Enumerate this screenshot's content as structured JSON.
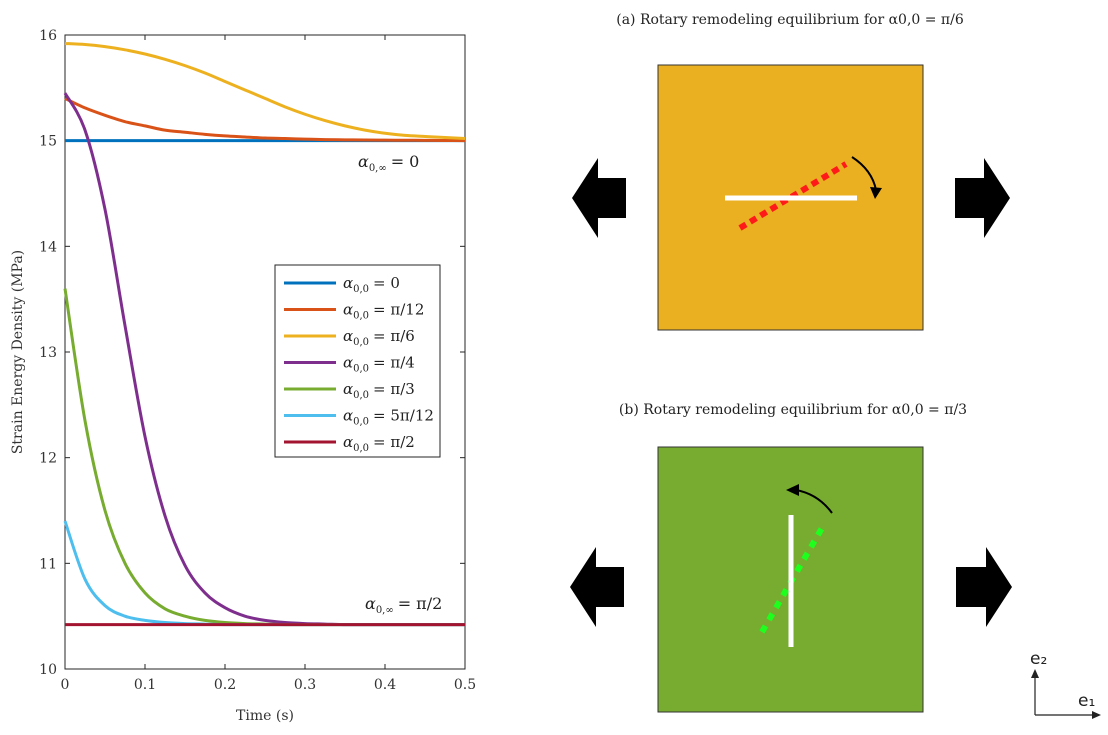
{
  "chart_data": {
    "type": "line",
    "xlabel": "Time (s)",
    "ylabel": "Strain Energy Density (MPa)",
    "xlim": [
      0,
      0.5
    ],
    "ylim": [
      10,
      16
    ],
    "x_ticks": [
      "0",
      "0.1",
      "0.2",
      "0.3",
      "0.4",
      "0.5"
    ],
    "y_ticks": [
      "10",
      "11",
      "12",
      "13",
      "14",
      "15",
      "16"
    ],
    "grid": false,
    "legend_position": "right-middle",
    "x": [
      0,
      0.025,
      0.05,
      0.075,
      0.1,
      0.125,
      0.15,
      0.175,
      0.2,
      0.225,
      0.25,
      0.275,
      0.3,
      0.325,
      0.35,
      0.375,
      0.4,
      0.425,
      0.45,
      0.475,
      0.5
    ],
    "series": [
      {
        "name": "α0,0 = 0",
        "color": "#0072BD",
        "values": [
          15.0,
          15.0,
          15.0,
          15.0,
          15.0,
          15.0,
          15.0,
          15.0,
          15.0,
          15.0,
          15.0,
          15.0,
          15.0,
          15.0,
          15.0,
          15.0,
          15.0,
          15.0,
          15.0,
          15.0,
          15.0
        ]
      },
      {
        "name": "α0,0 = π/12",
        "color": "#D95319",
        "values": [
          15.4,
          15.31,
          15.24,
          15.18,
          15.14,
          15.1,
          15.08,
          15.06,
          15.045,
          15.035,
          15.025,
          15.02,
          15.015,
          15.01,
          15.008,
          15.006,
          15.005,
          15.004,
          15.003,
          15.002,
          15.0
        ]
      },
      {
        "name": "α0,0 = π/6",
        "color": "#EDB120",
        "values": [
          15.92,
          15.91,
          15.89,
          15.86,
          15.82,
          15.77,
          15.71,
          15.64,
          15.56,
          15.48,
          15.4,
          15.32,
          15.25,
          15.19,
          15.14,
          15.1,
          15.07,
          15.05,
          15.04,
          15.03,
          15.02
        ]
      },
      {
        "name": "α0,0 = π/4",
        "color": "#7E2F8E",
        "values": [
          15.45,
          15.1,
          14.35,
          13.25,
          12.2,
          11.45,
          10.98,
          10.72,
          10.58,
          10.5,
          10.46,
          10.44,
          10.43,
          10.425,
          10.42,
          10.42,
          10.42,
          10.42,
          10.42,
          10.42,
          10.42
        ]
      },
      {
        "name": "α0,0 = π/3",
        "color": "#77AC30",
        "values": [
          13.6,
          12.35,
          11.5,
          11.0,
          10.72,
          10.57,
          10.5,
          10.46,
          10.44,
          10.43,
          10.425,
          10.42,
          10.42,
          10.42,
          10.42,
          10.42,
          10.42,
          10.42,
          10.42,
          10.42,
          10.42
        ]
      },
      {
        "name": "α0,0 = 5π/12",
        "color": "#4DBEEE",
        "values": [
          11.4,
          10.85,
          10.6,
          10.5,
          10.46,
          10.44,
          10.43,
          10.425,
          10.42,
          10.42,
          10.42,
          10.42,
          10.42,
          10.42,
          10.42,
          10.42,
          10.42,
          10.42,
          10.42,
          10.42,
          10.42
        ]
      },
      {
        "name": "α0,0 = π/2",
        "color": "#A2142F",
        "values": [
          10.42,
          10.42,
          10.42,
          10.42,
          10.42,
          10.42,
          10.42,
          10.42,
          10.42,
          10.42,
          10.42,
          10.42,
          10.42,
          10.42,
          10.42,
          10.42,
          10.42,
          10.42,
          10.42,
          10.42,
          10.42
        ]
      }
    ],
    "legend": [
      {
        "name": "α0,0 = 0",
        "base": "α",
        "sub": "0,0",
        "eq": "= 0",
        "color": "#0072BD"
      },
      {
        "name": "α0,0 = π/12",
        "base": "α",
        "sub": "0,0",
        "eq": "= π/12",
        "color": "#D95319"
      },
      {
        "name": "α0,0 = π/6",
        "base": "α",
        "sub": "0,0",
        "eq": "= π/6",
        "color": "#EDB120"
      },
      {
        "name": "α0,0 = π/4",
        "base": "α",
        "sub": "0,0",
        "eq": "= π/4",
        "color": "#7E2F8E"
      },
      {
        "name": "α0,0 = π/3",
        "base": "α",
        "sub": "0,0",
        "eq": "= π/3",
        "color": "#77AC30"
      },
      {
        "name": "α0,0 = 5π/12",
        "base": "α",
        "sub": "0,0",
        "eq": "= 5π/12",
        "color": "#4DBEEE"
      },
      {
        "name": "α0,0 = π/2",
        "base": "α",
        "sub": "0,0",
        "eq": "= π/2",
        "color": "#A2142F"
      }
    ],
    "annotations": [
      {
        "base": "α",
        "sub": "0,∞",
        "eq": "= 0",
        "at_x": 0.5,
        "at_y": 15.0
      },
      {
        "base": "α",
        "sub": "0,∞",
        "eq": "= π/2",
        "at_x": 0.5,
        "at_y": 10.42
      }
    ]
  },
  "diagram": {
    "panel_a": {
      "title": "(a) Rotary remodeling equilibrium for α0,0 = π/6",
      "fill": "#EBAF22",
      "fiber_color": "#ffffff",
      "initial_color": "#ff1a1a",
      "rotation_direction": "clockwise"
    },
    "panel_b": {
      "title": "(b) Rotary remodeling equilibrium for α0,0 = π/3",
      "fill": "#77AC30",
      "fiber_color": "#ffffff",
      "initial_color": "#1eff1e",
      "rotation_direction": "counterclockwise"
    },
    "arrow_color": "#000000",
    "basis": {
      "e1": "e₁",
      "e2": "e₂"
    }
  }
}
